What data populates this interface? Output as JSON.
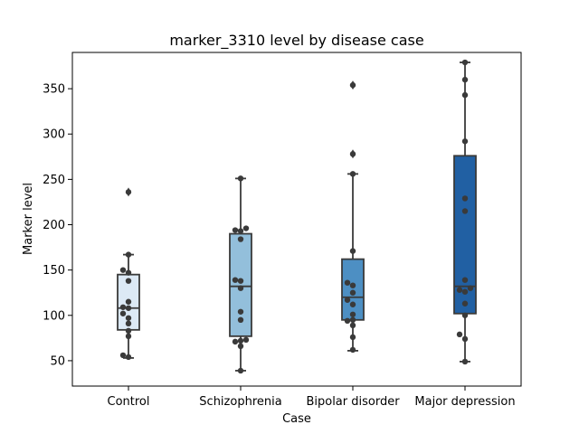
{
  "chart_data": {
    "type": "box",
    "title": "marker_3310 level by disease case",
    "xlabel": "Case",
    "ylabel": "Marker level",
    "ylim": [
      22,
      390
    ],
    "yticks": [
      50,
      100,
      150,
      200,
      250,
      300,
      350
    ],
    "grid": false,
    "legend": "none",
    "categories": [
      "Control",
      "Schizophrenia",
      "Bipolar disorder",
      "Major depression"
    ],
    "colors": [
      "#dce9f5",
      "#93bfdb",
      "#4d8fc3",
      "#2160a3"
    ],
    "series": [
      {
        "category": "Control",
        "whisker_low": 53,
        "q1": 84,
        "median": 108,
        "q3": 145,
        "whisker_high": 167,
        "outliers": [
          236
        ],
        "points": [
          236,
          167,
          150,
          147,
          138,
          115,
          109,
          108,
          102,
          97,
          91,
          83,
          77,
          56,
          54
        ]
      },
      {
        "category": "Schizophrenia",
        "whisker_low": 39,
        "q1": 77,
        "median": 132,
        "q3": 190,
        "whisker_high": 251,
        "outliers": [],
        "points": [
          251,
          196,
          194,
          193,
          184,
          139,
          138,
          130,
          104,
          95,
          73,
          72,
          71,
          66,
          39
        ]
      },
      {
        "category": "Bipolar disorder",
        "whisker_low": 61,
        "q1": 95,
        "median": 120,
        "q3": 162,
        "whisker_high": 256,
        "outliers": [
          354,
          278
        ],
        "points": [
          354,
          278,
          256,
          171,
          136,
          133,
          125,
          117,
          112,
          101,
          95,
          94,
          89,
          76,
          62
        ]
      },
      {
        "category": "Major depression",
        "whisker_low": 49,
        "q1": 102,
        "median": 132,
        "q3": 276,
        "whisker_high": 379,
        "outliers": [],
        "points": [
          379,
          360,
          343,
          292,
          229,
          215,
          139,
          130,
          128,
          126,
          113,
          100,
          79,
          74,
          49
        ]
      }
    ]
  }
}
